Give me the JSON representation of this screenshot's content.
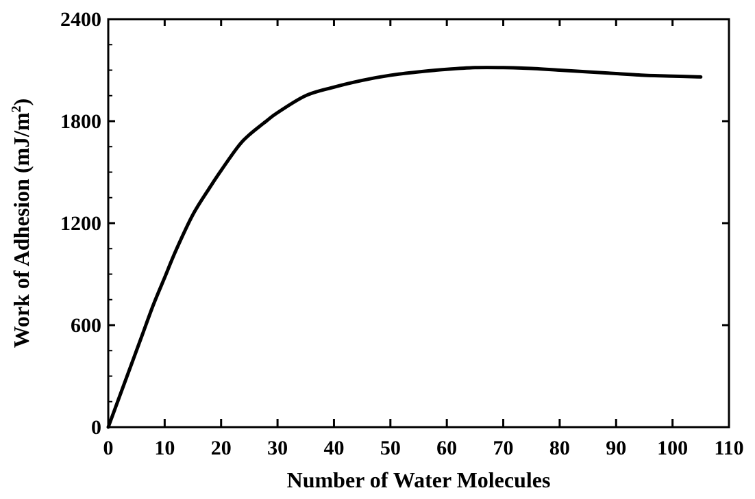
{
  "chart_data": {
    "type": "line",
    "xlabel": "Number of Water Molecules",
    "ylabel_main": "Work of Adhesion (mJ/m",
    "ylabel_sup": "2",
    "ylabel_close": ")",
    "xlim": [
      0,
      110
    ],
    "ylim": [
      0,
      2400
    ],
    "x_ticks": [
      0,
      10,
      20,
      30,
      40,
      50,
      60,
      70,
      80,
      90,
      100,
      110
    ],
    "y_ticks": [
      0,
      600,
      1200,
      1800,
      2400
    ],
    "grid": false,
    "series": [
      {
        "x": [
          0,
          2,
          4,
          6,
          8,
          10,
          12,
          15,
          18,
          20,
          23,
          25,
          28,
          30,
          35,
          40,
          45,
          50,
          55,
          60,
          65,
          70,
          75,
          80,
          85,
          90,
          95,
          100,
          105
        ],
        "y": [
          0,
          180,
          360,
          540,
          720,
          880,
          1040,
          1250,
          1410,
          1510,
          1650,
          1720,
          1800,
          1850,
          1950,
          2000,
          2040,
          2070,
          2090,
          2105,
          2115,
          2115,
          2110,
          2100,
          2090,
          2080,
          2070,
          2065,
          2060
        ]
      }
    ]
  }
}
